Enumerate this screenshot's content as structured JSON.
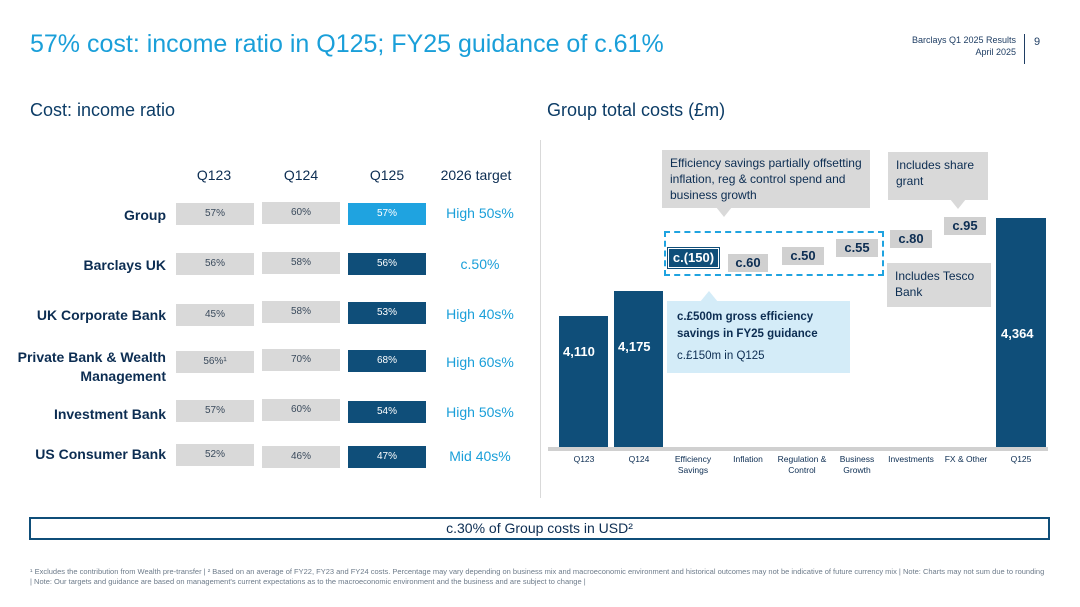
{
  "header": {
    "title": "57% cost: income ratio in Q125; FY25 guidance of c.61%",
    "report": "Barclays Q1 2025 Results",
    "date": "April 2025",
    "page": "9"
  },
  "left": {
    "section_title": "Cost: income ratio",
    "columns": [
      "Q123",
      "Q124",
      "Q125",
      "2026 target"
    ],
    "rows": [
      {
        "label": "Group",
        "q123": "57%",
        "q124": "60%",
        "q125": "57%",
        "target": "High 50s%"
      },
      {
        "label": "Barclays UK",
        "q123": "56%",
        "q124": "58%",
        "q125": "56%",
        "target": "c.50%"
      },
      {
        "label": "UK Corporate Bank",
        "q123": "45%",
        "q124": "58%",
        "q125": "53%",
        "target": "High 40s%"
      },
      {
        "label": "Private Bank & Wealth Management",
        "q123": "56%¹",
        "q124": "70%",
        "q125": "68%",
        "target": "High 60s%"
      },
      {
        "label": "Investment Bank",
        "q123": "57%",
        "q124": "60%",
        "q125": "54%",
        "target": "High 50s%"
      },
      {
        "label": "US Consumer Bank",
        "q123": "52%",
        "q124": "46%",
        "q125": "47%",
        "target": "Mid 40s%"
      }
    ]
  },
  "right": {
    "section_title": "Group total costs (£m)",
    "callout_efficiency": "Efficiency savings partially offsetting inflation, reg & control spend and business growth",
    "callout_share": "Includes share grant",
    "callout_tesco": "Includes Tesco Bank",
    "info_title": "c.£500m gross efficiency savings in FY25 guidance",
    "info_sub": "c.£150m in Q125"
  },
  "chart_data": {
    "type": "bar",
    "title": "Group total costs (£m)",
    "categories": [
      "Q123",
      "Q124",
      "Efficiency Savings",
      "Inflation",
      "Regulation & Control",
      "Business Growth",
      "Investments",
      "FX & Other",
      "Q125"
    ],
    "values": [
      4110,
      4175,
      -150,
      60,
      50,
      55,
      80,
      95,
      4364
    ],
    "labels": [
      "4,110",
      "4,175",
      "c.(150)",
      "c.60",
      "c.50",
      "c.55",
      "c.80",
      "c.95",
      "4,364"
    ]
  },
  "footer": {
    "usd_note": "c.30% of Group costs in USD²",
    "footnote": "¹ Excludes the contribution from Wealth pre-transfer | ² Based on an average of FY22, FY23 and FY24 costs. Percentage may vary depending on business mix and macroeconomic environment and historical outcomes may not be indicative of future currency mix | Note: Charts may not sum due to rounding | Note: Our targets and guidance are based on management's current expectations as to the macroeconomic environment and the business and are subject to change |"
  }
}
